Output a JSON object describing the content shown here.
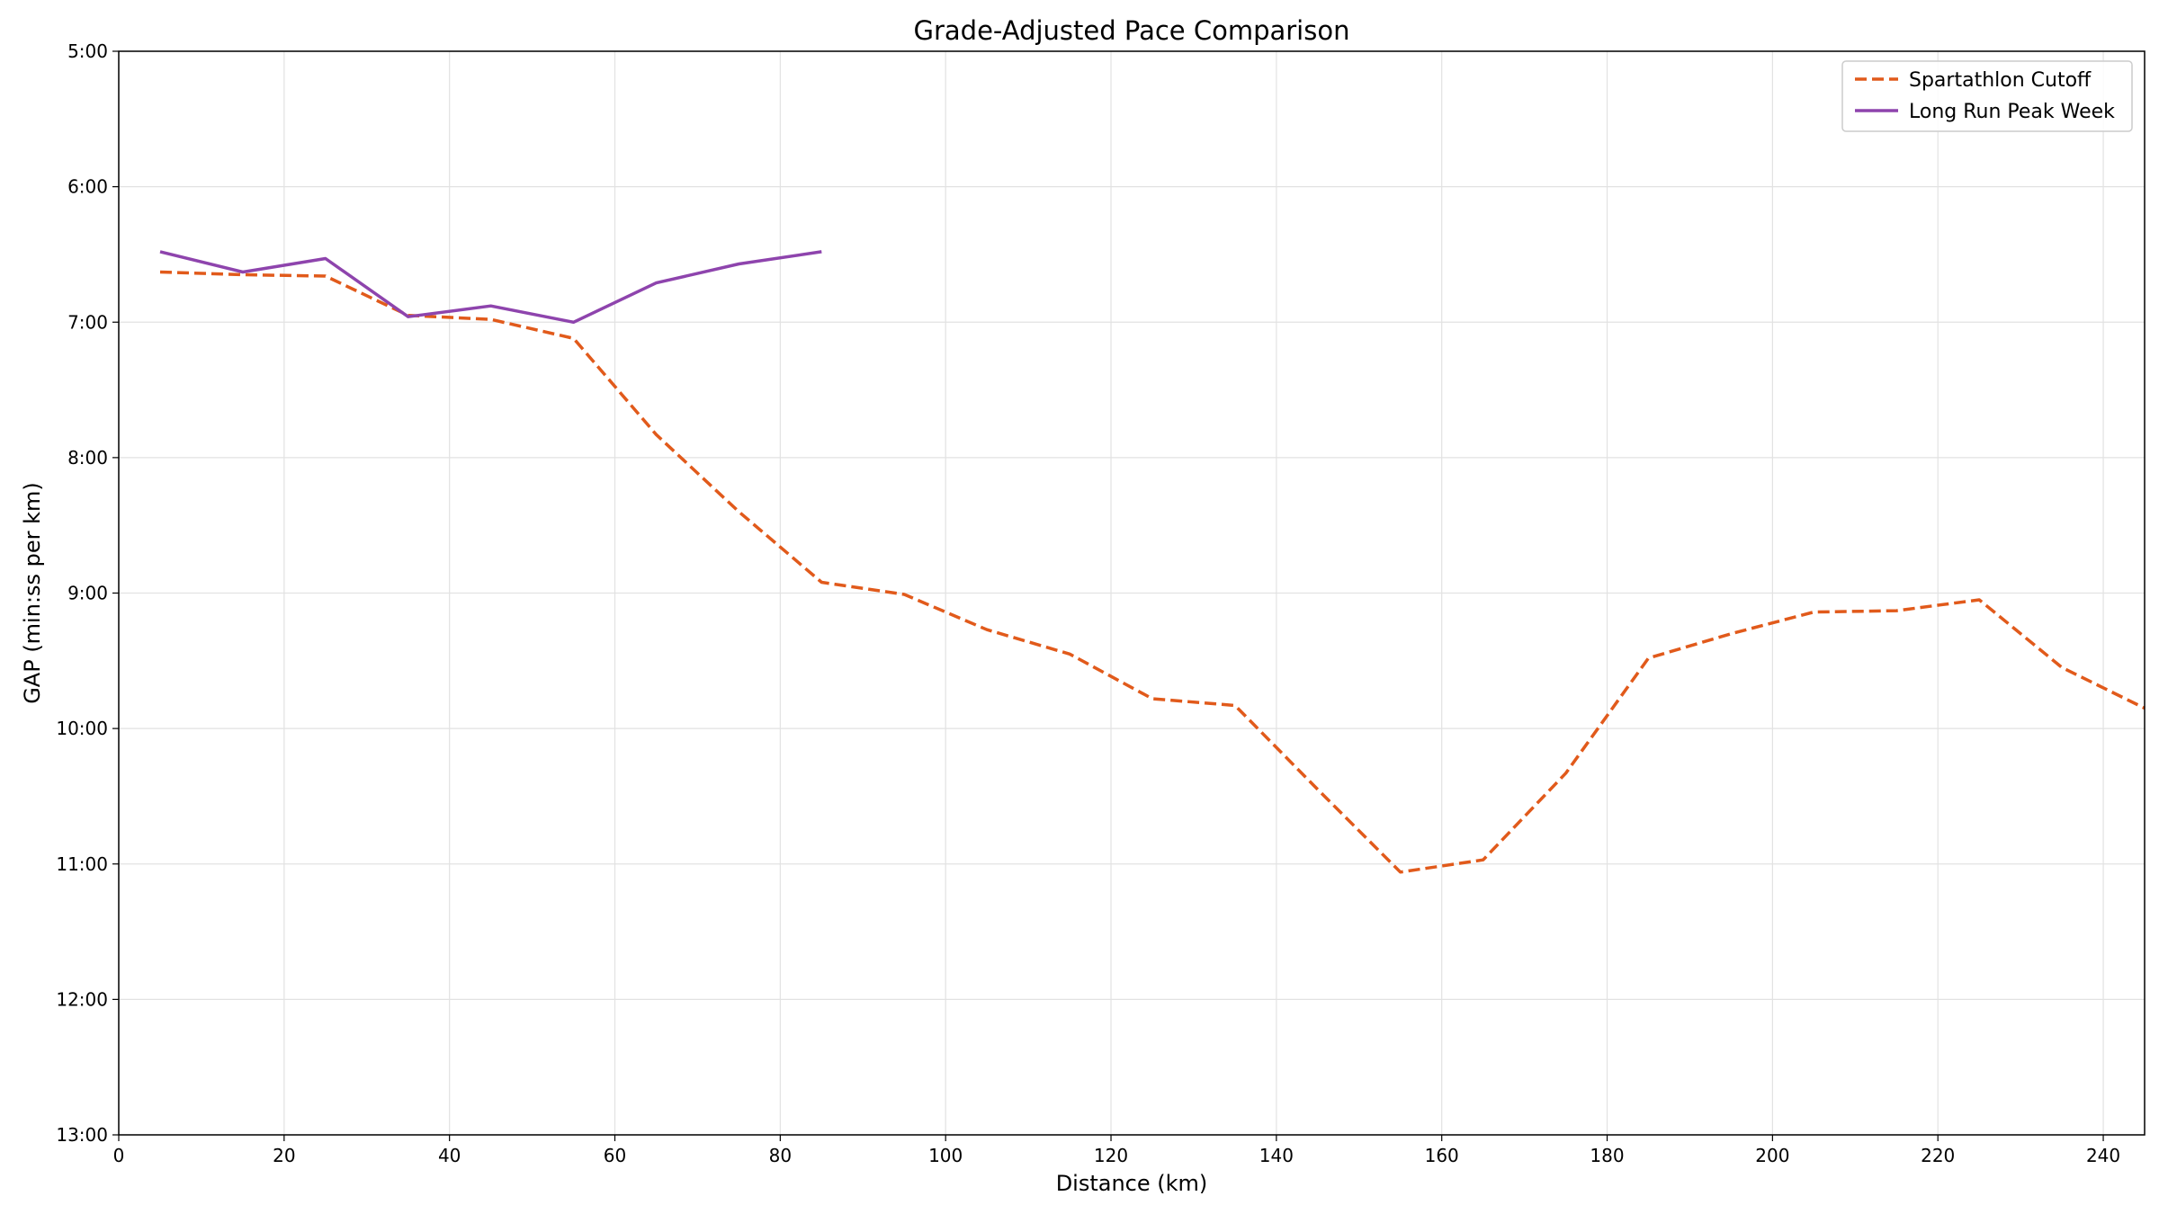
{
  "chart_data": {
    "type": "line",
    "title": "Grade-Adjusted Pace Comparison",
    "xlabel": "Distance (km)",
    "ylabel": "GAP (min:ss per km)",
    "xlim": [
      0,
      245
    ],
    "ylim": [
      5,
      13
    ],
    "y_inverted": true,
    "x_ticks": [
      0,
      20,
      40,
      60,
      80,
      100,
      120,
      140,
      160,
      180,
      200,
      220,
      240
    ],
    "y_ticks": [
      {
        "value": 5,
        "label": "5:00"
      },
      {
        "value": 6,
        "label": "6:00"
      },
      {
        "value": 7,
        "label": "7:00"
      },
      {
        "value": 8,
        "label": "8:00"
      },
      {
        "value": 9,
        "label": "9:00"
      },
      {
        "value": 10,
        "label": "10:00"
      },
      {
        "value": 11,
        "label": "11:00"
      },
      {
        "value": 12,
        "label": "12:00"
      },
      {
        "value": 13,
        "label": "13:00"
      }
    ],
    "grid": true,
    "legend": "top-right",
    "series": [
      {
        "name": "Spartathlon Cutoff",
        "color": "#e15a1b",
        "style": "dashed",
        "x": [
          5,
          15,
          25,
          35,
          45,
          55,
          65,
          75,
          85,
          95,
          105,
          115,
          125,
          135,
          145,
          155,
          165,
          175,
          185,
          195,
          205,
          215,
          225,
          235,
          245
        ],
        "y": [
          6.63,
          6.65,
          6.66,
          6.95,
          6.98,
          7.12,
          7.83,
          8.4,
          8.92,
          9.01,
          9.27,
          9.45,
          9.78,
          9.83,
          10.45,
          11.06,
          10.97,
          10.33,
          9.48,
          9.3,
          9.14,
          9.13,
          9.05,
          9.55,
          9.85
        ]
      },
      {
        "name": "Long Run Peak Week",
        "color": "#8e44ad",
        "style": "solid",
        "x": [
          5,
          15,
          25,
          35,
          45,
          55,
          65,
          75,
          85
        ],
        "y": [
          6.48,
          6.63,
          6.53,
          6.96,
          6.88,
          7.0,
          6.71,
          6.57,
          6.48
        ]
      }
    ]
  }
}
